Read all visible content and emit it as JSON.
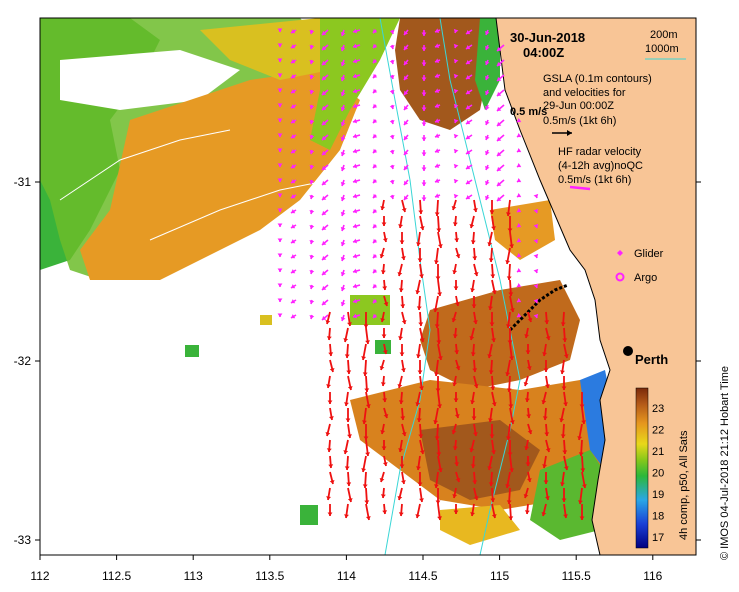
{
  "map": {
    "date": "30-Jun-2018",
    "time": "04:00Z",
    "contour_legend": {
      "label_a": "200m",
      "label_b": "1000m",
      "color_b": "#3ad6d6"
    },
    "gsla": {
      "line1": "GSLA (0.1m contours)",
      "line2": "and velocities for",
      "line3": "29-Jun 00:00Z",
      "scale": "0.5m/s (1kt 6h)",
      "overlay_scale": "0.5 m/s"
    },
    "hf": {
      "line1": "HF radar velocity",
      "line2": "(4-12h avg)noQC",
      "scale": "0.5m/s (1kt 6h)",
      "color": "#ff22ff"
    },
    "glider_label": "Glider",
    "argo_label": "Argo",
    "city_label": "Perth",
    "x_ticks": [
      "112",
      "112.5",
      "113",
      "113.5",
      "114",
      "114.5",
      "115",
      "115.5",
      "116"
    ],
    "y_ticks": [
      "-31",
      "-32",
      "-33"
    ],
    "colorbar": {
      "ticks": [
        "23",
        "22",
        "21",
        "20",
        "19",
        "18",
        "17"
      ],
      "label": "4h comp, p50, All Sats"
    },
    "credit": "© IMOS 04-Jul-2018 21:12 Hobart Time",
    "colors": {
      "land": "#f8c596",
      "green": "#3ab33a",
      "orange": "#e69a24",
      "brown": "#a2581c",
      "radar_arrow": "#ff22ff",
      "sla_arrow": "#ee1111",
      "blue": "#2b7be0"
    }
  }
}
